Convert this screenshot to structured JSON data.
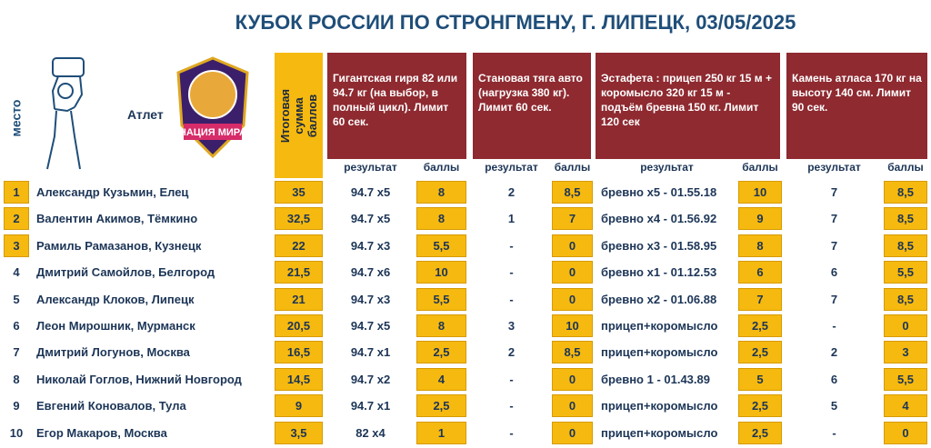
{
  "title": "КУБОК РОССИИ ПО СТРОНГМЕНУ, Г. ЛИПЕЦК, 03/05/2025",
  "header": {
    "place": "место",
    "athlete": "Атлет",
    "total": "Итоговая сумма баллов",
    "logo": "НАЦИЯ МИРА",
    "events": [
      {
        "description": "Гигантская гиря 82 или 94.7 кг (на выбор, в полный цикл). Лимит 60 сек.",
        "columns": [
          "результат",
          "баллы"
        ]
      },
      {
        "description": "Становая тяга авто (нагрузка 380 кг). Лимит 60 сек.",
        "columns": [
          "результат",
          "баллы"
        ]
      },
      {
        "description": "Эстафета : прицеп 250 кг 15 м + коромысло 320 кг 15 м - подъём бревна 150 кг. Лимит 120 сек",
        "columns": [
          "результат",
          "баллы"
        ]
      },
      {
        "description": "Камень атласа 170 кг на высоту 140 см. Лимит 90 сек.",
        "columns": [
          "результат",
          "баллы"
        ]
      }
    ]
  },
  "table": {
    "rows": [
      [
        "1",
        "Александр Кузьмин, Елец",
        "35",
        "94.7 x5",
        "8",
        "2",
        "8,5",
        "бревно x5 - 01.55.18",
        "10",
        "7",
        "8,5"
      ],
      [
        "2",
        "Валентин Акимов, Тёмкино",
        "32,5",
        "94.7 x5",
        "8",
        "1",
        "7",
        "бревно x4 - 01.56.92",
        "9",
        "7",
        "8,5"
      ],
      [
        "3",
        "Рамиль Рамазанов, Кузнецк",
        "22",
        "94.7 x3",
        "5,5",
        "-",
        "0",
        "бревно x3 - 01.58.95",
        "8",
        "7",
        "8,5"
      ],
      [
        "4",
        "Дмитрий Самойлов, Белгород",
        "21,5",
        "94.7 x6",
        "10",
        "-",
        "0",
        "бревно x1 - 01.12.53",
        "6",
        "6",
        "5,5"
      ],
      [
        "5",
        "Александр Клоков, Липецк",
        "21",
        "94.7 x3",
        "5,5",
        "-",
        "0",
        "бревно x2 - 01.06.88",
        "7",
        "7",
        "8,5"
      ],
      [
        "6",
        "Леон Мирошник, Мурманск",
        "20,5",
        "94.7 x5",
        "8",
        "3",
        "10",
        "прицеп+коромысло",
        "2,5",
        "-",
        "0"
      ],
      [
        "7",
        "Дмитрий Логунов, Москва",
        "16,5",
        "94.7 x1",
        "2,5",
        "2",
        "8,5",
        "прицеп+коромысло",
        "2,5",
        "2",
        "3"
      ],
      [
        "8",
        "Николай Гоглов, Нижний Новгород",
        "14,5",
        "94.7 x2",
        "4",
        "-",
        "0",
        "бревно 1 - 01.43.89",
        "5",
        "6",
        "5,5"
      ],
      [
        "9",
        "Евгений Коновалов, Тула",
        "9",
        "94.7 x1",
        "2,5",
        "-",
        "0",
        "прицеп+коромысло",
        "2,5",
        "5",
        "4"
      ],
      [
        "10",
        "Егор Макаров, Москва",
        "3,5",
        "82 x4",
        "1",
        "-",
        "0",
        "прицеп+коромысло",
        "2,5",
        "-",
        "0"
      ]
    ]
  }
}
